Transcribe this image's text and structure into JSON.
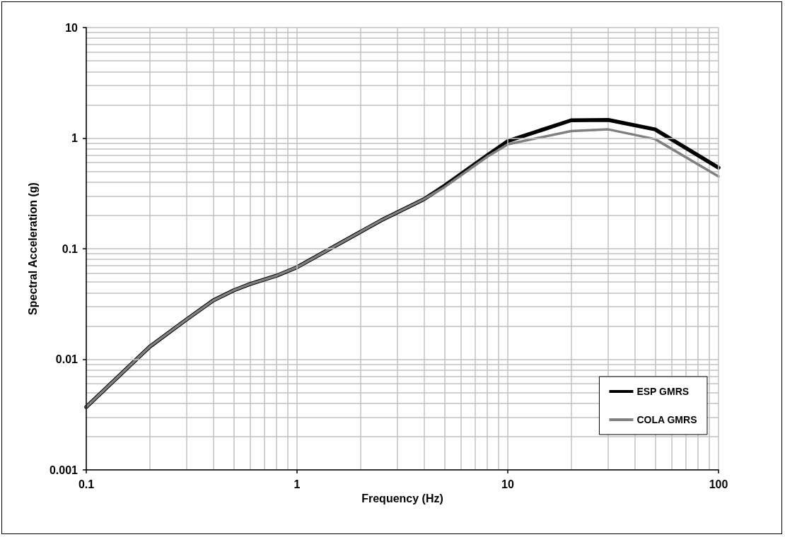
{
  "chart_data": {
    "type": "line",
    "xlabel": "Frequency (Hz)",
    "ylabel": "Spectral Acceleration (g)",
    "log": "xy",
    "xlim": [
      0.1,
      100
    ],
    "xticks": [
      0.1,
      1,
      10,
      100
    ],
    "ylim": [
      0.001,
      10
    ],
    "yticks": [
      0.001,
      0.01,
      0.1,
      1,
      10
    ],
    "grid": true,
    "legend": "bottom right",
    "marker": "none",
    "line_style": "solid",
    "series": [
      {
        "name": "ESP GMRS",
        "color": "#000000",
        "x": [
          0.1,
          0.2,
          0.3,
          0.4,
          0.5,
          0.6,
          0.8,
          1,
          2.5,
          4,
          5,
          8,
          10,
          20,
          30,
          50,
          100
        ],
        "values": [
          0.0037,
          0.013,
          0.023,
          0.034,
          0.042,
          0.048,
          0.057,
          0.068,
          0.18,
          0.28,
          0.37,
          0.7,
          0.94,
          1.45,
          1.46,
          1.2,
          0.54
        ]
      },
      {
        "name": "COLA GMRS",
        "color": "#808080",
        "x": [
          0.1,
          0.2,
          0.3,
          0.4,
          0.5,
          0.6,
          0.8,
          1,
          2.5,
          4,
          5,
          8,
          10,
          20,
          30,
          50,
          100
        ],
        "values": [
          0.0037,
          0.013,
          0.023,
          0.034,
          0.042,
          0.048,
          0.057,
          0.068,
          0.18,
          0.28,
          0.36,
          0.68,
          0.88,
          1.16,
          1.2,
          0.98,
          0.45
        ]
      }
    ]
  }
}
